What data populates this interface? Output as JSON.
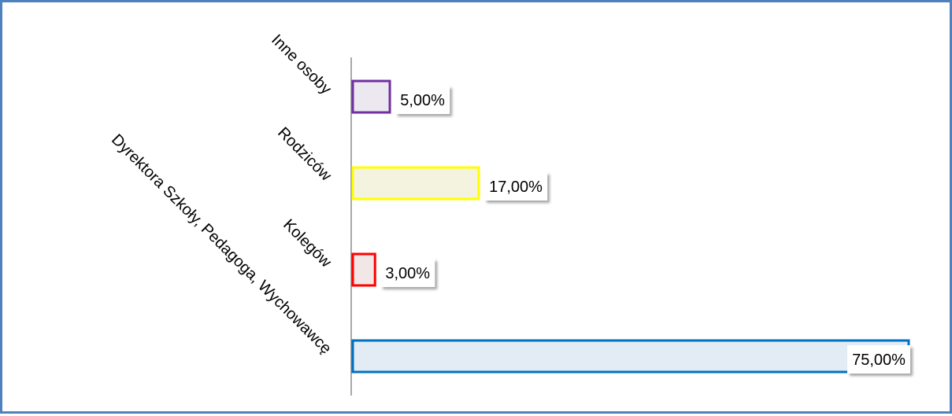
{
  "chart_data": {
    "type": "bar",
    "orientation": "horizontal",
    "categories": [
      "Inne osoby",
      "Rodziców",
      "Kolegów",
      "Dyrektora Szkoły, Pedagoga, Wychowawcę"
    ],
    "values": [
      5,
      17,
      3,
      75
    ],
    "data_labels": [
      "5,00%",
      "17,00%",
      "3,00%",
      "75,00%"
    ],
    "colors": [
      "#7030a0",
      "#ffff00",
      "#ff0000",
      "#0070c0"
    ],
    "fills": [
      "#ebe8f0",
      "#f3f3e0",
      "#f3e6e6",
      "#e3ebf4"
    ],
    "title": "",
    "xlabel": "",
    "ylabel": "",
    "xlim": [
      0,
      100
    ],
    "grid": false,
    "legend": "none"
  }
}
